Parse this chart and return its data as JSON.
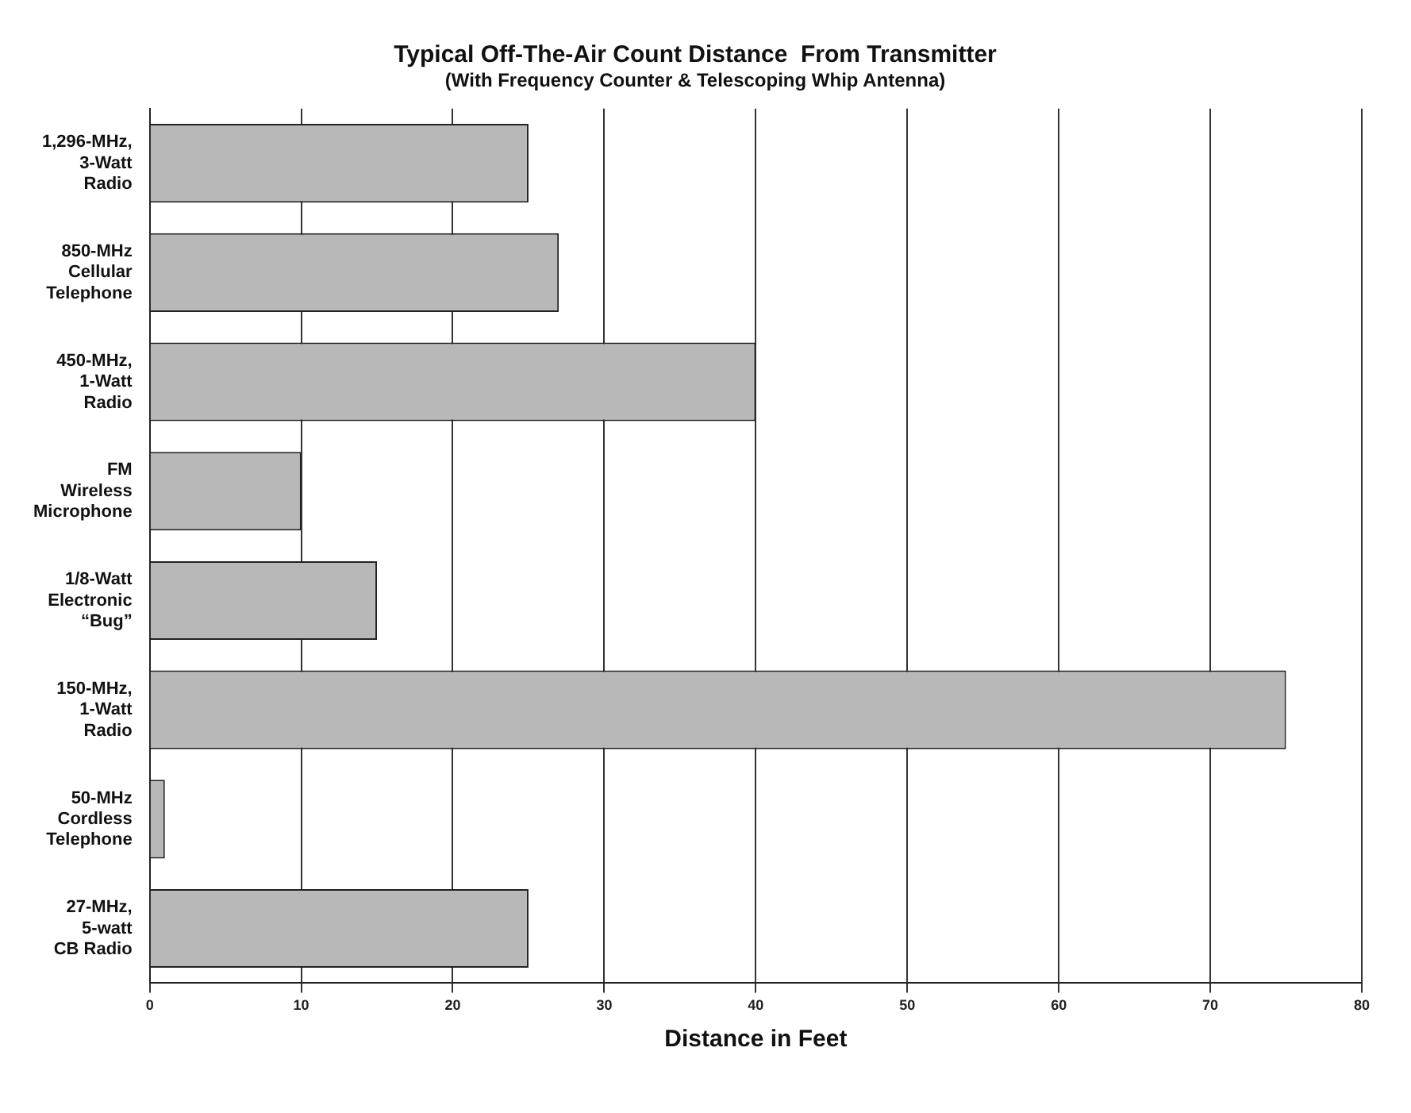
{
  "chart_data": {
    "type": "bar",
    "orientation": "horizontal",
    "title": "Typical Off-The-Air Count Distance  From Transmitter",
    "subtitle": "(With Frequency Counter & Telescoping Whip Antenna)",
    "xlabel": "Distance in Feet",
    "categories": [
      "1,296-MHz,\n3-Watt\nRadio",
      "850-MHz\nCellular\nTelephone",
      "450-MHz,\n1-Watt\nRadio",
      "FM\nWireless\nMicrophone",
      "1/8-Watt\nElectronic\n“Bug”",
      "150-MHz,\n1-Watt\nRadio",
      "50-MHz\nCordless\nTelephone",
      "27-MHz,\n5-watt\nCB Radio"
    ],
    "values": [
      25,
      27,
      40,
      10,
      15,
      75,
      1,
      25
    ],
    "color": "#b8b8b8",
    "xlim": [
      0,
      80
    ],
    "xticks": [
      0,
      10,
      20,
      30,
      40,
      50,
      60,
      70,
      80
    ],
    "grid": "x",
    "legend": false
  }
}
